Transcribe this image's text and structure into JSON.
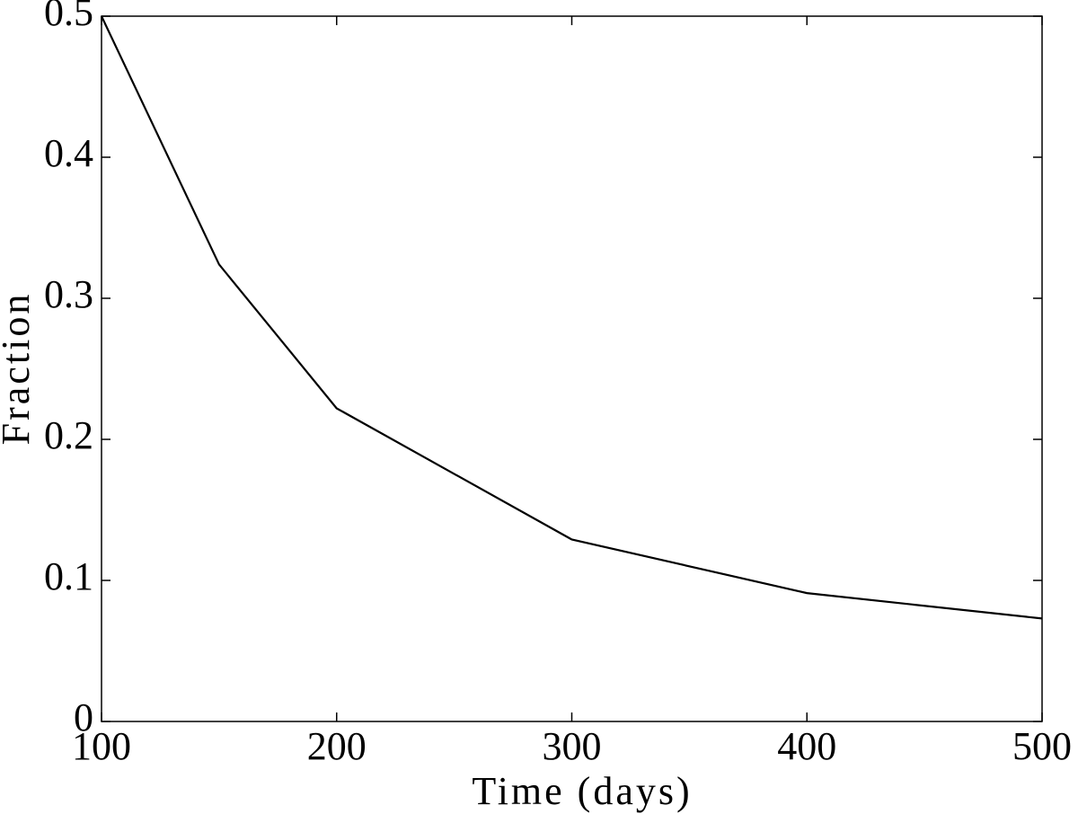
{
  "chart_data": {
    "type": "line",
    "x_label": "Time (days)",
    "y_label": "Fraction",
    "x": [
      100,
      150,
      200,
      300,
      400,
      500
    ],
    "series": [
      {
        "color": "#000000",
        "values": [
          0.5,
          0.324,
          0.222,
          0.129,
          0.091,
          0.073
        ]
      }
    ],
    "xlim": [
      100,
      500
    ],
    "xticks": [
      100,
      200,
      300,
      400,
      500
    ],
    "ylim": [
      0,
      0.5
    ],
    "yticks": [
      0,
      0.1,
      0.2,
      0.3,
      0.4,
      0.5
    ],
    "grid": false
  }
}
